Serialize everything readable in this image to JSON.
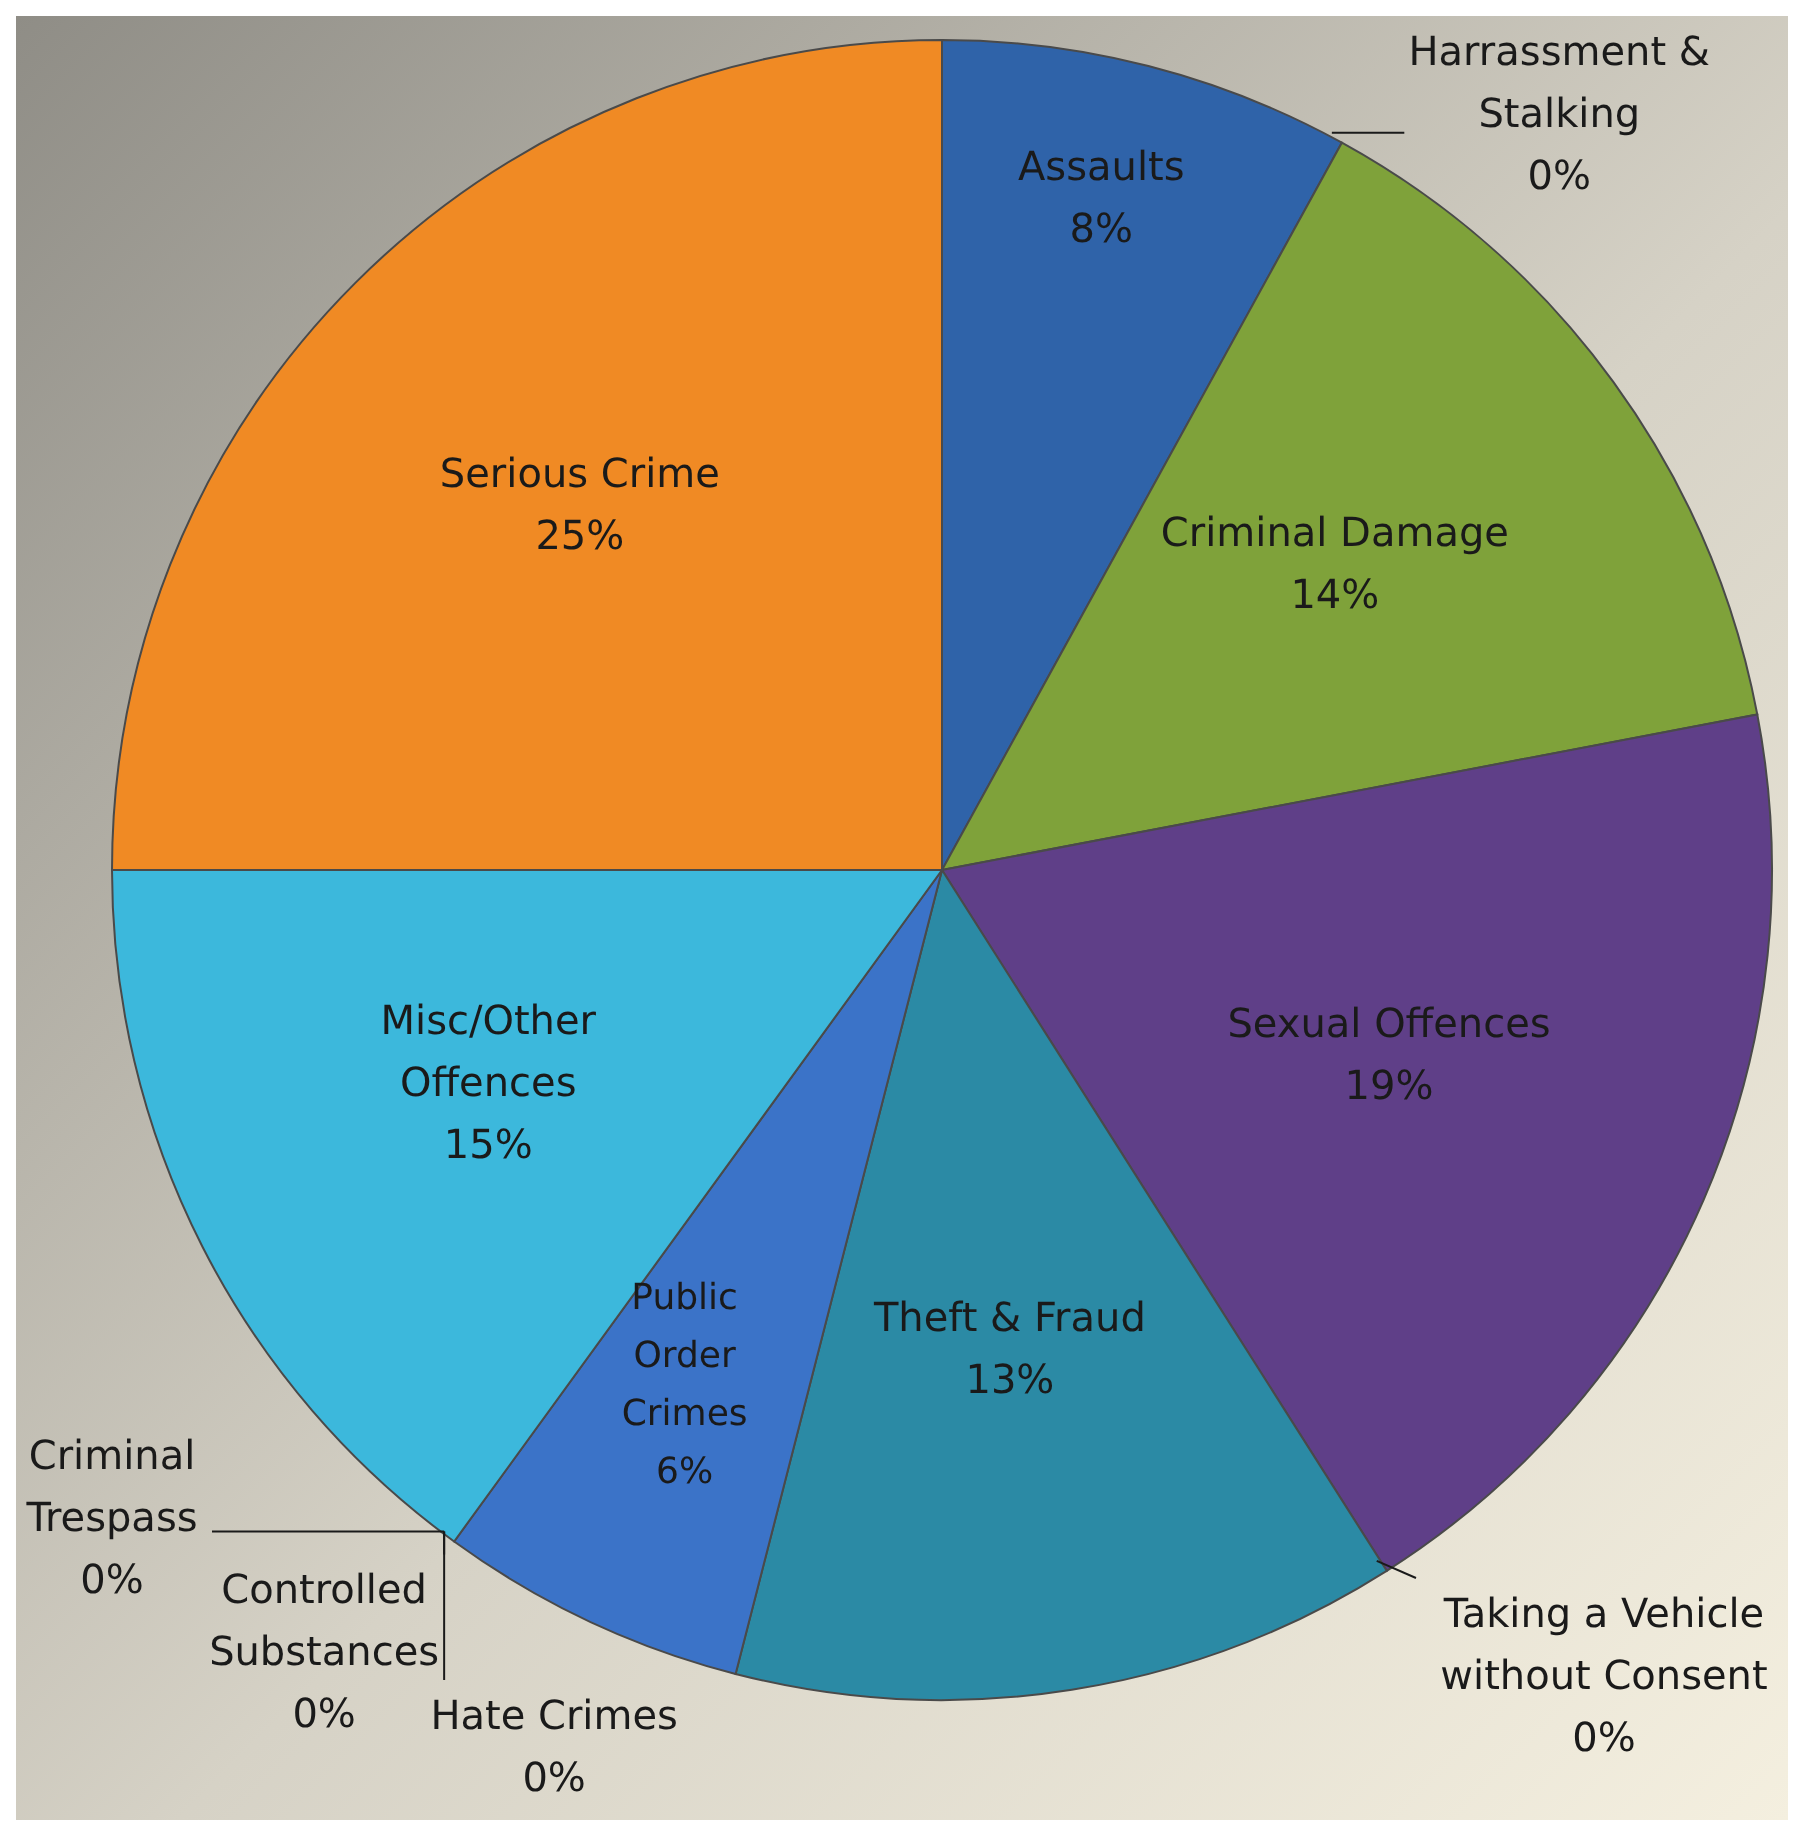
{
  "chart_data": {
    "type": "pie",
    "categories": [
      "Assaults",
      "Harrassment & Stalking",
      "Criminal Damage",
      "Sexual Offences",
      "Taking a Vehicle without Consent",
      "Theft & Fraud",
      "Public Order Crimes",
      "Hate Crimes",
      "Controlled Substances",
      "Criminal Trespass",
      "Misc/Other Offences",
      "Serious Crime"
    ],
    "values": [
      8,
      0,
      14,
      19,
      0,
      13,
      6,
      0,
      0,
      0,
      15,
      25
    ],
    "value_labels": [
      "8%",
      "0%",
      "14%",
      "19%",
      "0%",
      "13%",
      "6%",
      "0%",
      "0%",
      "0%",
      "15%",
      "25%"
    ],
    "colors": [
      "#2f63a9",
      "#c0504d",
      "#7fa23a",
      "#5f3f88",
      "#4bacc6",
      "#2b8aa5",
      "#3b73c8",
      "#9bbb59",
      "#8064a2",
      "#f79646",
      "#3cb8dc",
      "#f08a24"
    ]
  }
}
